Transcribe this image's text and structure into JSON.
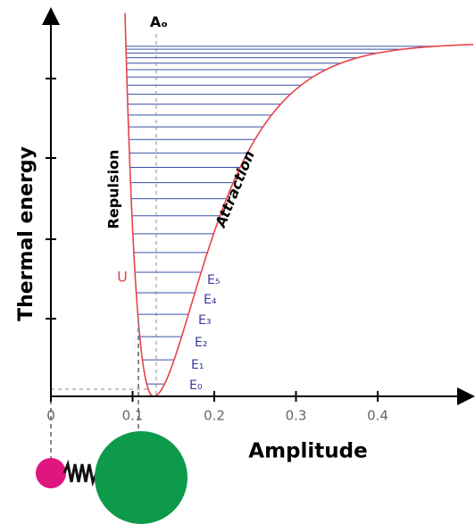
{
  "axes": {
    "y_label": "Thermal energy",
    "x_label": "Amplitude",
    "x_ticks": [
      "0",
      "0.1",
      "0.2",
      "0.3",
      "0.4"
    ]
  },
  "annotations": {
    "equilibrium": "Aₒ",
    "repulsion": "Repulsion",
    "attraction": "Attraction",
    "potential": "U",
    "levels": [
      "E₀",
      "E₁",
      "E₂",
      "E₃",
      "E₄",
      "E₅"
    ]
  }
}
